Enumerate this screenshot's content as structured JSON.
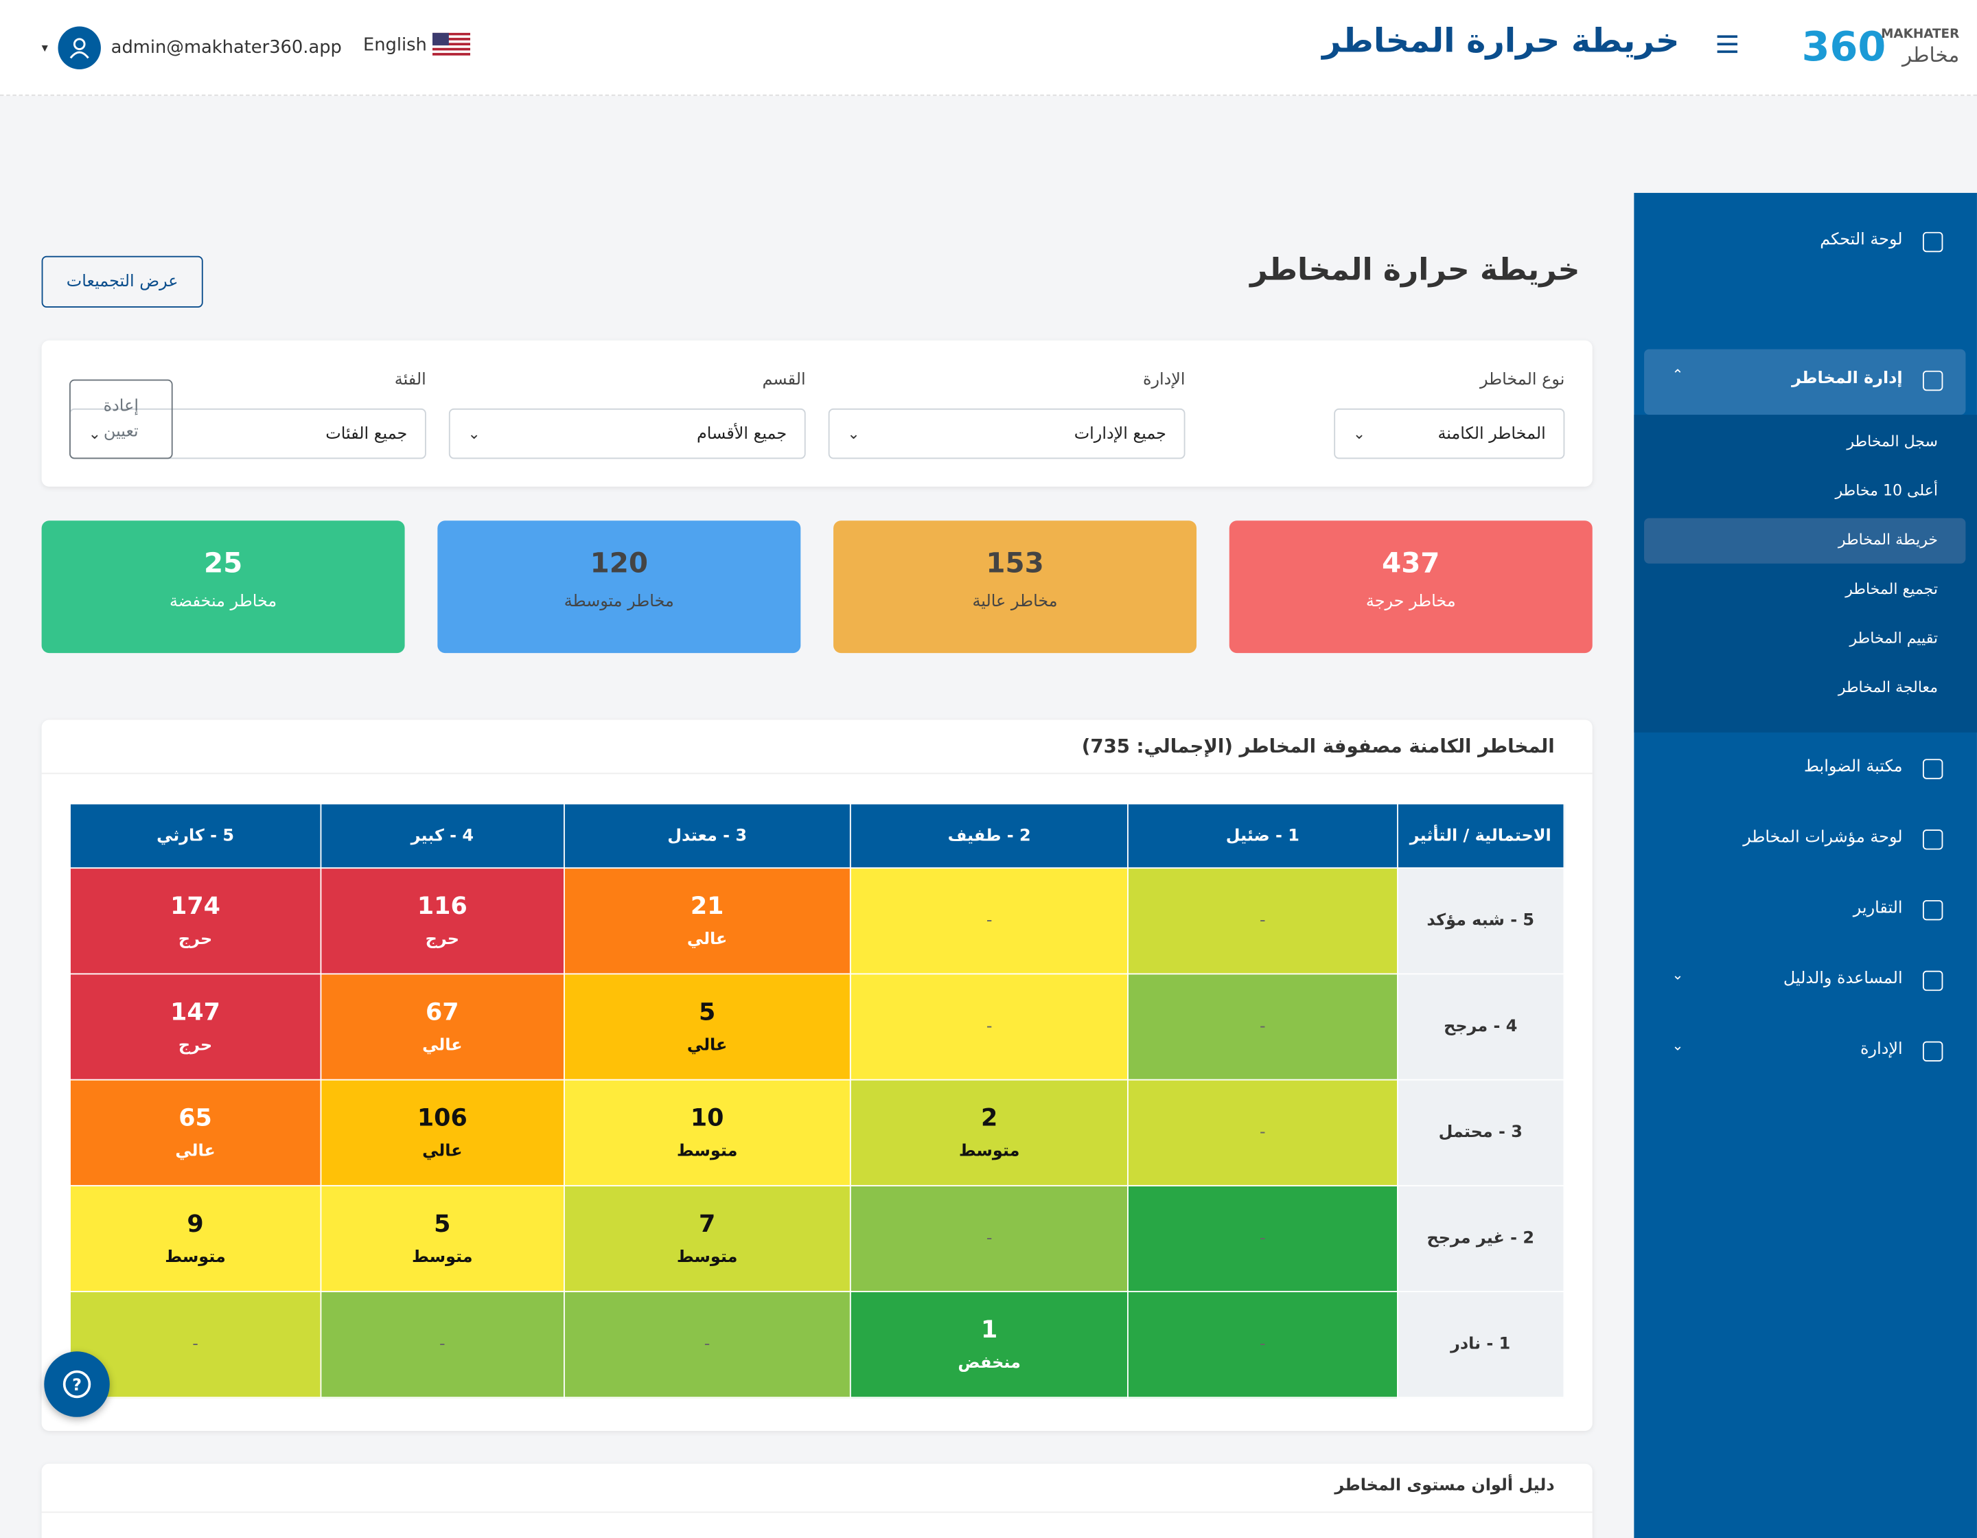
{
  "header": {
    "title": "خريطة حرارة المخاطر",
    "brand_number": "360",
    "brand_latin": "MAKHATER",
    "brand_arabic": "مخاطر",
    "email": "admin@makhater360.app",
    "language": "English"
  },
  "sidebar": {
    "items": [
      {
        "label": "لوحة التحكم"
      },
      {
        "label": "إدارة المخاطر",
        "children": [
          "سجل المخاطر",
          "أعلى 10 مخاطر",
          "خريطة المخاطر",
          "تجميع المخاطر",
          "تقييم المخاطر",
          "معالجة المخاطر"
        ]
      },
      {
        "label": "مكتبة الضوابط"
      },
      {
        "label": "لوحة مؤشرات المخاطر"
      },
      {
        "label": "التقارير"
      },
      {
        "label": "المساعدة والدليل"
      },
      {
        "label": "الإدارة"
      }
    ],
    "active": "خريطة المخاطر"
  },
  "page": {
    "title": "خريطة حرارة المخاطر",
    "groupings_button": "عرض التجميعات"
  },
  "filters": {
    "fields": [
      {
        "label": "نوع المخاطر",
        "value": "المخاطر الكامنة"
      },
      {
        "label": "الإدارة",
        "value": "جميع الإدارات"
      },
      {
        "label": "القسم",
        "value": "جميع الأقسام"
      },
      {
        "label": "الفئة",
        "value": "جميع الفئات"
      }
    ],
    "reset": "إعادة تعيين"
  },
  "summary": [
    {
      "value": 437,
      "label": "مخاطر حرجة",
      "color": "#f46b6b"
    },
    {
      "value": 153,
      "label": "مخاطر عالية",
      "color": "#f0b24c"
    },
    {
      "value": 120,
      "label": "مخاطر متوسطة",
      "color": "#4fa3ef"
    },
    {
      "value": 25,
      "label": "مخاطر منخفضة",
      "color": "#35c48b"
    }
  ],
  "matrix": {
    "title": "المخاطر الكامنة مصفوفة المخاطر (الإجمالي: 735)",
    "corner": "الاحتمالية / التأثير",
    "columns": [
      "1 - ضئيل",
      "2 - طفيف",
      "3 - معتدل",
      "4 - كبير",
      "5 - كارثي"
    ],
    "rows": [
      {
        "label": "5 - شبه مؤكد",
        "cells": [
          {
            "value": "-",
            "color": "#cddc39"
          },
          {
            "value": "-",
            "color": "#ffeb3b"
          },
          {
            "value": 21,
            "label": "عالي",
            "color": "#fd7e14"
          },
          {
            "value": 116,
            "label": "حرج",
            "color": "#dc3545"
          },
          {
            "value": 174,
            "label": "حرج",
            "color": "#dc3545"
          }
        ]
      },
      {
        "label": "4 - مرجح",
        "cells": [
          {
            "value": "-",
            "color": "#8bc34a"
          },
          {
            "value": "-",
            "color": "#ffeb3b"
          },
          {
            "value": 5,
            "label": "عالي",
            "color": "#ffc107"
          },
          {
            "value": 67,
            "label": "عالي",
            "color": "#fd7e14"
          },
          {
            "value": 147,
            "label": "حرج",
            "color": "#dc3545"
          }
        ]
      },
      {
        "label": "3 - محتمل",
        "cells": [
          {
            "value": "-",
            "color": "#cddc39"
          },
          {
            "value": 2,
            "label": "متوسط",
            "color": "#cddc39"
          },
          {
            "value": 10,
            "label": "متوسط",
            "color": "#ffeb3b"
          },
          {
            "value": 106,
            "label": "عالي",
            "color": "#ffc107"
          },
          {
            "value": 65,
            "label": "عالي",
            "color": "#fd7e14"
          }
        ]
      },
      {
        "label": "2 - غير مرجح",
        "cells": [
          {
            "value": "-",
            "color": "#28a745"
          },
          {
            "value": "-",
            "color": "#8bc34a"
          },
          {
            "value": 7,
            "label": "متوسط",
            "color": "#cddc39"
          },
          {
            "value": 5,
            "label": "متوسط",
            "color": "#ffeb3b"
          },
          {
            "value": 9,
            "label": "متوسط",
            "color": "#ffeb3b"
          }
        ]
      },
      {
        "label": "1 - نادر",
        "cells": [
          {
            "value": "-",
            "color": "#28a745"
          },
          {
            "value": 1,
            "label": "منخفض",
            "color": "#28a745"
          },
          {
            "value": "-",
            "color": "#8bc34a"
          },
          {
            "value": "-",
            "color": "#8bc34a"
          },
          {
            "value": "-",
            "color": "#cddc39"
          }
        ]
      }
    ]
  },
  "legend": {
    "title": "دليل ألوان مستوى المخاطر"
  }
}
